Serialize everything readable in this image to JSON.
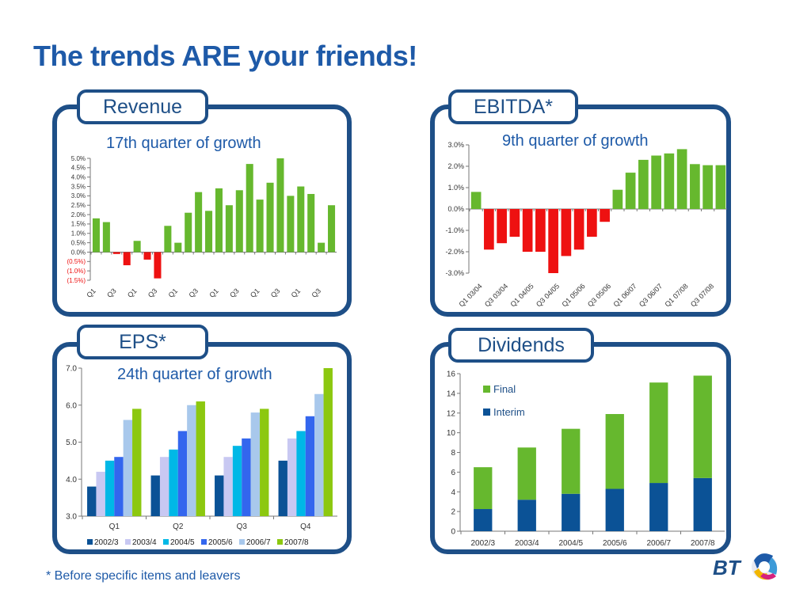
{
  "slide": {
    "title": "The trends ARE your friends!",
    "footnote": "* Before specific items and leavers",
    "logo_text": "BT"
  },
  "colors": {
    "accent_blue": "#1e5aa8",
    "panel_border": "#1e4f87",
    "positive_green": "#66b82e",
    "negative_red": "#ee1111",
    "dividend_final": "#66b82e",
    "dividend_interim": "#0b5296",
    "eps_series": [
      "#0b5296",
      "#c8c8f2",
      "#00b8e6",
      "#3366ee",
      "#a8c8ec",
      "#8cc80f"
    ]
  },
  "panels": {
    "revenue": {
      "tab": "Revenue",
      "subtitle": "17th quarter of growth"
    },
    "ebitda": {
      "tab": "EBITDA*",
      "subtitle": "9th quarter of growth"
    },
    "eps": {
      "tab": "EPS*",
      "subtitle": "24th quarter of growth"
    },
    "dividends": {
      "tab": "Dividends"
    }
  },
  "chart_data": [
    {
      "id": "revenue",
      "type": "bar",
      "ylim": [
        -1.5,
        5.0
      ],
      "y_ticks": [
        5.0,
        4.5,
        4.0,
        3.5,
        3.0,
        2.5,
        2.0,
        1.5,
        1.0,
        0.5,
        0.0,
        -0.5,
        -1.0,
        -1.5
      ],
      "y_tick_labels": [
        "5.0%",
        "4.5%",
        "4.0%",
        "3.5%",
        "3.0%",
        "2.5%",
        "2.0%",
        "1.5%",
        "1.0%",
        "0.5%",
        "0.0%",
        "(0.5%)",
        "(1.0%)",
        "(1.5%)"
      ],
      "x_tick_labels": [
        "Q1",
        "Q3",
        "Q1",
        "Q3",
        "Q1",
        "Q3",
        "Q1",
        "Q3",
        "Q1",
        "Q3",
        "Q1",
        "Q3"
      ],
      "values": [
        1.8,
        1.6,
        -0.1,
        -0.7,
        0.6,
        -0.4,
        -1.4,
        1.4,
        0.5,
        2.1,
        3.2,
        2.2,
        3.4,
        2.5,
        3.3,
        4.7,
        2.8,
        3.7,
        5.0,
        3.0,
        3.5,
        3.1,
        0.5,
        2.5
      ],
      "grid": false
    },
    {
      "id": "ebitda",
      "type": "bar",
      "ylim": [
        -3.0,
        3.0
      ],
      "y_ticks": [
        3.0,
        2.0,
        1.0,
        0.0,
        -1.0,
        -2.0,
        -3.0
      ],
      "y_tick_labels": [
        "3.0%",
        "2.0%",
        "1.0%",
        "0.0%",
        "-1.0%",
        "-2.0%",
        "-3.0%"
      ],
      "x_tick_labels": [
        "Q1 03/04",
        "Q3 03/04",
        "Q1 04/05",
        "Q3 04/05",
        "Q1 05/06",
        "Q3 05/06",
        "Q1 06/07",
        "Q3 06/07",
        "Q1 07/08",
        "Q3 07/08"
      ],
      "values": [
        0.8,
        -1.9,
        -1.6,
        -1.3,
        -2.0,
        -2.0,
        -3.0,
        -2.2,
        -1.9,
        -1.3,
        -0.6,
        0.9,
        1.7,
        2.3,
        2.5,
        2.6,
        2.8,
        2.1,
        2.05,
        2.05
      ],
      "grid": false
    },
    {
      "id": "eps",
      "type": "bar",
      "ylim": [
        3.0,
        7.0
      ],
      "y_ticks": [
        7.0,
        6.0,
        5.0,
        4.0,
        3.0
      ],
      "y_tick_labels": [
        "7.0",
        "6.0",
        "5.0",
        "4.0",
        "3.0"
      ],
      "categories": [
        "Q1",
        "Q2",
        "Q3",
        "Q4"
      ],
      "series": [
        {
          "name": "2002/3",
          "values": [
            3.8,
            4.1,
            4.1,
            4.5
          ]
        },
        {
          "name": "2003/4",
          "values": [
            4.2,
            4.6,
            4.6,
            5.1
          ]
        },
        {
          "name": "2004/5",
          "values": [
            4.5,
            4.8,
            4.9,
            5.3
          ]
        },
        {
          "name": "2005/6",
          "values": [
            4.6,
            5.3,
            5.1,
            5.7
          ]
        },
        {
          "name": "2006/7",
          "values": [
            5.6,
            6.0,
            5.8,
            6.3
          ]
        },
        {
          "name": "2007/8",
          "values": [
            5.9,
            6.1,
            5.9,
            7.0
          ]
        }
      ],
      "legend": "bottom",
      "grid": false
    },
    {
      "id": "dividends",
      "type": "bar",
      "stacked": true,
      "ylim": [
        0,
        16
      ],
      "y_ticks": [
        16,
        14,
        12,
        10,
        8,
        6,
        4,
        2,
        0
      ],
      "y_tick_labels": [
        "16",
        "14",
        "12",
        "10",
        "8",
        "6",
        "4",
        "2",
        "0"
      ],
      "categories": [
        "2002/3",
        "2003/4",
        "2004/5",
        "2005/6",
        "2006/7",
        "2007/8"
      ],
      "series": [
        {
          "name": "Interim",
          "values": [
            2.25,
            3.2,
            3.8,
            4.3,
            4.9,
            5.4
          ]
        },
        {
          "name": "Final",
          "values": [
            4.25,
            5.3,
            6.6,
            7.6,
            10.2,
            10.4
          ]
        }
      ],
      "legend_order": [
        "Final",
        "Interim"
      ],
      "legend": "top-left",
      "grid": false
    }
  ]
}
